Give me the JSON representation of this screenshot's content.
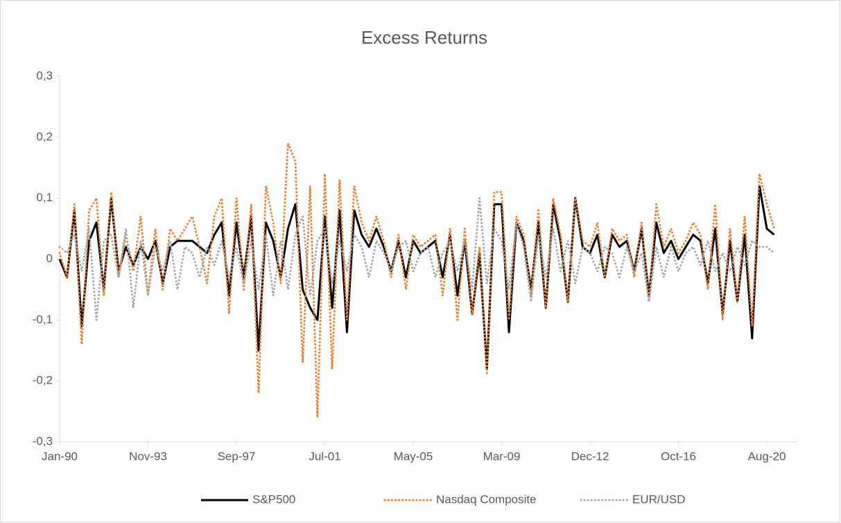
{
  "chart_data": {
    "type": "line",
    "title": "Excess Returns",
    "categories": [
      "Jan-90",
      null,
      null,
      null,
      null,
      null,
      null,
      null,
      null,
      null,
      null,
      null,
      "Nov-93",
      null,
      null,
      null,
      null,
      null,
      null,
      null,
      null,
      null,
      null,
      null,
      "Sep-97",
      null,
      null,
      null,
      null,
      null,
      null,
      null,
      null,
      null,
      null,
      null,
      "Jul-01",
      null,
      null,
      null,
      null,
      null,
      null,
      null,
      null,
      null,
      null,
      null,
      "May-05",
      null,
      null,
      null,
      null,
      null,
      null,
      null,
      null,
      null,
      null,
      null,
      "Mar-09",
      null,
      null,
      null,
      null,
      null,
      null,
      null,
      null,
      null,
      null,
      null,
      "Dec-12",
      null,
      null,
      null,
      null,
      null,
      null,
      null,
      null,
      null,
      null,
      null,
      "Oct-16",
      null,
      null,
      null,
      null,
      null,
      null,
      null,
      null,
      null,
      null,
      null,
      "Aug-20",
      null
    ],
    "series": [
      {
        "name": "S&P500",
        "color": "#000000",
        "line_style": "solid",
        "values": [
          0,
          -0.03,
          0.08,
          -0.11,
          0.03,
          0.06,
          -0.05,
          0.1,
          -0.02,
          0.02,
          -0.01,
          0.02,
          0,
          0.03,
          -0.04,
          0.02,
          0.03,
          0.03,
          0.03,
          0.02,
          0.01,
          0.04,
          0.06,
          -0.06,
          0.06,
          -0.03,
          0.07,
          -0.15,
          0.06,
          0.03,
          -0.03,
          0.05,
          0.09,
          -0.05,
          -0.08,
          -0.1,
          0.07,
          -0.08,
          0.08,
          -0.12,
          0.08,
          0.04,
          0.02,
          0.05,
          0.02,
          -0.02,
          0.03,
          -0.03,
          0.03,
          0.01,
          0.02,
          0.03,
          -0.03,
          0.04,
          -0.06,
          0.03,
          -0.09,
          0.01,
          -0.18,
          0.09,
          0.09,
          -0.12,
          0.06,
          0.03,
          -0.05,
          0.06,
          -0.08,
          0.09,
          0.03,
          -0.07,
          0.1,
          0.02,
          0.01,
          0.04,
          -0.03,
          0.04,
          0.02,
          0.03,
          -0.02,
          0.05,
          -0.06,
          0.06,
          0.01,
          0.03,
          0,
          0.02,
          0.04,
          0.03,
          -0.04,
          0.05,
          -0.09,
          0.03,
          -0.07,
          0.04,
          -0.13,
          0.12,
          0.05,
          0.04
        ]
      },
      {
        "name": "Nasdaq Composite",
        "color": "#ed7d31",
        "line_style": "dotted",
        "values": [
          0.01,
          -0.03,
          0.09,
          -0.14,
          0.08,
          0.1,
          -0.06,
          0.11,
          -0.03,
          0.04,
          -0.02,
          0.07,
          -0.06,
          0.05,
          -0.05,
          0.05,
          0.03,
          0.05,
          0.07,
          0.02,
          -0.04,
          0.07,
          0.1,
          -0.09,
          0.1,
          -0.05,
          0.09,
          -0.22,
          0.12,
          0.06,
          -0.04,
          0.19,
          0.16,
          -0.17,
          0.12,
          -0.26,
          0.14,
          -0.18,
          0.13,
          -0.1,
          0.12,
          0.06,
          0.03,
          0.07,
          0.03,
          -0.03,
          0.04,
          -0.05,
          0.04,
          0.02,
          0.03,
          0.04,
          -0.06,
          0.05,
          -0.1,
          0.05,
          -0.09,
          0.02,
          -0.19,
          0.11,
          0.11,
          -0.1,
          0.07,
          0.04,
          -0.06,
          0.08,
          -0.08,
          0.1,
          0.04,
          -0.07,
          0.1,
          0.03,
          0.02,
          0.06,
          -0.03,
          0.05,
          0.03,
          0.04,
          -0.03,
          0.06,
          -0.07,
          0.09,
          0.02,
          0.05,
          0.01,
          0.03,
          0.06,
          0.04,
          -0.05,
          0.09,
          -0.1,
          0.05,
          -0.07,
          0.07,
          -0.11,
          0.14,
          0.09,
          0.05
        ]
      },
      {
        "name": "EUR/USD",
        "color": "#a5a5a5",
        "line_style": "dotted",
        "values": [
          0.02,
          0.01,
          0.04,
          -0.02,
          0.05,
          -0.1,
          0.03,
          0.04,
          -0.03,
          0.05,
          -0.08,
          0.03,
          -0.06,
          0.02,
          -0.02,
          0.03,
          -0.05,
          0.02,
          0.01,
          -0.03,
          0.02,
          -0.01,
          0.03,
          -0.03,
          0.02,
          -0.04,
          0.03,
          -0.05,
          0.04,
          -0.06,
          0.03,
          -0.05,
          0.04,
          0.07,
          -0.06,
          0.03,
          0.05,
          -0.04,
          0.03,
          -0.02,
          0.04,
          0.02,
          -0.03,
          0.03,
          0.01,
          -0.02,
          0.02,
          0.03,
          -0.02,
          0.01,
          0.02,
          -0.03,
          0.01,
          0.03,
          -0.02,
          0.03,
          -0.05,
          0.1,
          -0.04,
          0.05,
          0.03,
          -0.05,
          0.06,
          0.02,
          -0.07,
          0.04,
          -0.03,
          0.05,
          -0.02,
          0.03,
          -0.04,
          0.02,
          0.01,
          -0.02,
          0.02,
          0.01,
          -0.03,
          0.02,
          -0.02,
          0.01,
          -0.07,
          0.02,
          -0.03,
          0.02,
          -0.02,
          0.01,
          0.02,
          -0.01,
          0.03,
          -0.02,
          0.01,
          -0.02,
          0.02,
          -0.01,
          0.03,
          0.02,
          0.02,
          0.01
        ]
      }
    ],
    "ylim": [
      -0.3,
      0.3
    ],
    "yticks": [
      {
        "value": -0.3,
        "label": "-0,3"
      },
      {
        "value": -0.2,
        "label": "-0,2"
      },
      {
        "value": -0.1,
        "label": "-0,1"
      },
      0,
      {
        "value": 0.1,
        "label": "0,1"
      },
      {
        "value": 0.2,
        "label": "0,2"
      },
      {
        "value": 0.3,
        "label": "0,3"
      }
    ],
    "grid": false,
    "legend": "bottom"
  }
}
